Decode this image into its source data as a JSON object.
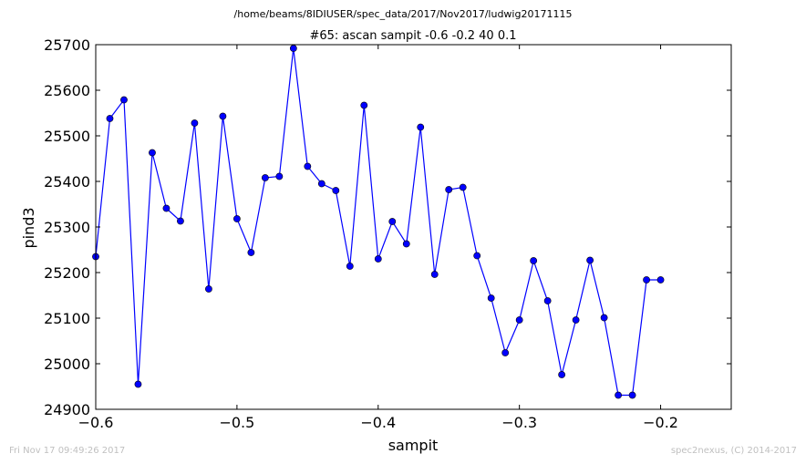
{
  "suptitle": "/home/beams/8IDIUSER/spec_data/2017/Nov2017/ludwig20171115",
  "footer": {
    "left": "Fri Nov 17 09:49:26 2017",
    "right": "spec2nexus, (C) 2014-2017"
  },
  "chart_data": {
    "type": "line",
    "title": "#65: ascan  sampit -0.6 -0.2  40 0.1",
    "xlabel": "sampit",
    "ylabel": "pind3",
    "xlim": [
      -0.6,
      -0.15
    ],
    "ylim": [
      24900,
      25700
    ],
    "xticks": [
      -0.6,
      -0.5,
      -0.4,
      -0.3,
      -0.2
    ],
    "xtick_labels": [
      "−0.6",
      "−0.5",
      "−0.4",
      "−0.3",
      "−0.2"
    ],
    "yticks": [
      24900,
      25000,
      25100,
      25200,
      25300,
      25400,
      25500,
      25600,
      25700
    ],
    "ytick_labels": [
      "24900",
      "25000",
      "25100",
      "25200",
      "25300",
      "25400",
      "25500",
      "25600",
      "25700"
    ],
    "grid": false,
    "series_color": "#0000ff",
    "x": [
      -0.6,
      -0.59,
      -0.58,
      -0.57,
      -0.56,
      -0.55,
      -0.54,
      -0.53,
      -0.52,
      -0.51,
      -0.5,
      -0.49,
      -0.48,
      -0.47,
      -0.46,
      -0.45,
      -0.44,
      -0.43,
      -0.42,
      -0.41,
      -0.4,
      -0.39,
      -0.38,
      -0.37,
      -0.36,
      -0.35,
      -0.34,
      -0.33,
      -0.32,
      -0.31,
      -0.3,
      -0.29,
      -0.28,
      -0.27,
      -0.26,
      -0.25,
      -0.24,
      -0.23,
      -0.22,
      -0.21,
      -0.2
    ],
    "y": [
      25235,
      25538,
      25579,
      24955,
      25463,
      25341,
      25313,
      25528,
      25164,
      25543,
      25318,
      25244,
      25408,
      25411,
      25692,
      25433,
      25395,
      25380,
      25214,
      25567,
      25230,
      25312,
      25263,
      25519,
      25196,
      25382,
      25387,
      25237,
      25144,
      25024,
      25096,
      25226,
      25138,
      24976,
      25096,
      25227,
      25101,
      24931,
      24931,
      25184,
      25184
    ]
  }
}
